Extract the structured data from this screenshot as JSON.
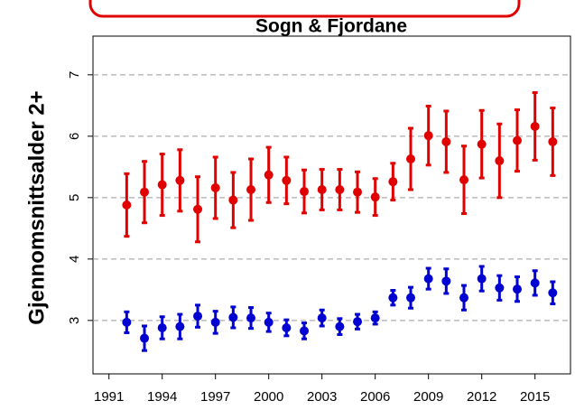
{
  "chart_data": {
    "type": "errorbar_scatter",
    "title": "Sogn & Fjordane",
    "y_label": "Gjennomsnittsalder 2+",
    "x": [
      1992,
      1993,
      1994,
      1995,
      1996,
      1997,
      1998,
      1999,
      2000,
      2001,
      2002,
      2003,
      2004,
      2005,
      2006,
      2007,
      2008,
      2009,
      2010,
      2011,
      2012,
      2013,
      2014,
      2015,
      2016
    ],
    "series": [
      {
        "color": "#e00000",
        "values": [
          4.88,
          5.09,
          5.21,
          5.28,
          4.81,
          5.16,
          4.96,
          5.13,
          5.37,
          5.28,
          5.1,
          5.13,
          5.13,
          5.09,
          5.01,
          5.26,
          5.63,
          6.01,
          5.91,
          5.29,
          5.87,
          5.6,
          5.93,
          6.16,
          5.91
        ],
        "errors": [
          0.51,
          0.5,
          0.5,
          0.5,
          0.53,
          0.5,
          0.45,
          0.5,
          0.45,
          0.38,
          0.35,
          0.33,
          0.33,
          0.33,
          0.3,
          0.3,
          0.5,
          0.48,
          0.5,
          0.55,
          0.55,
          0.6,
          0.5,
          0.55,
          0.55
        ]
      },
      {
        "color": "#0000d0",
        "values": [
          2.97,
          2.71,
          2.88,
          2.9,
          3.07,
          2.97,
          3.05,
          3.04,
          2.97,
          2.88,
          2.83,
          3.04,
          2.9,
          2.98,
          3.04,
          3.37,
          3.37,
          3.68,
          3.64,
          3.37,
          3.68,
          3.53,
          3.51,
          3.61,
          3.45
        ],
        "errors": [
          0.17,
          0.2,
          0.18,
          0.2,
          0.18,
          0.18,
          0.17,
          0.17,
          0.15,
          0.13,
          0.13,
          0.13,
          0.13,
          0.12,
          0.1,
          0.12,
          0.17,
          0.17,
          0.2,
          0.2,
          0.2,
          0.2,
          0.2,
          0.2,
          0.18
        ]
      }
    ],
    "xlim": [
      1990.1,
      2017
    ],
    "xticks": [
      1991,
      1994,
      1997,
      2000,
      2003,
      2006,
      2009,
      2012,
      2015
    ],
    "ylim": [
      2.13,
      7.63
    ],
    "yticks": [
      3,
      4,
      5,
      6,
      7
    ],
    "grid": true
  }
}
